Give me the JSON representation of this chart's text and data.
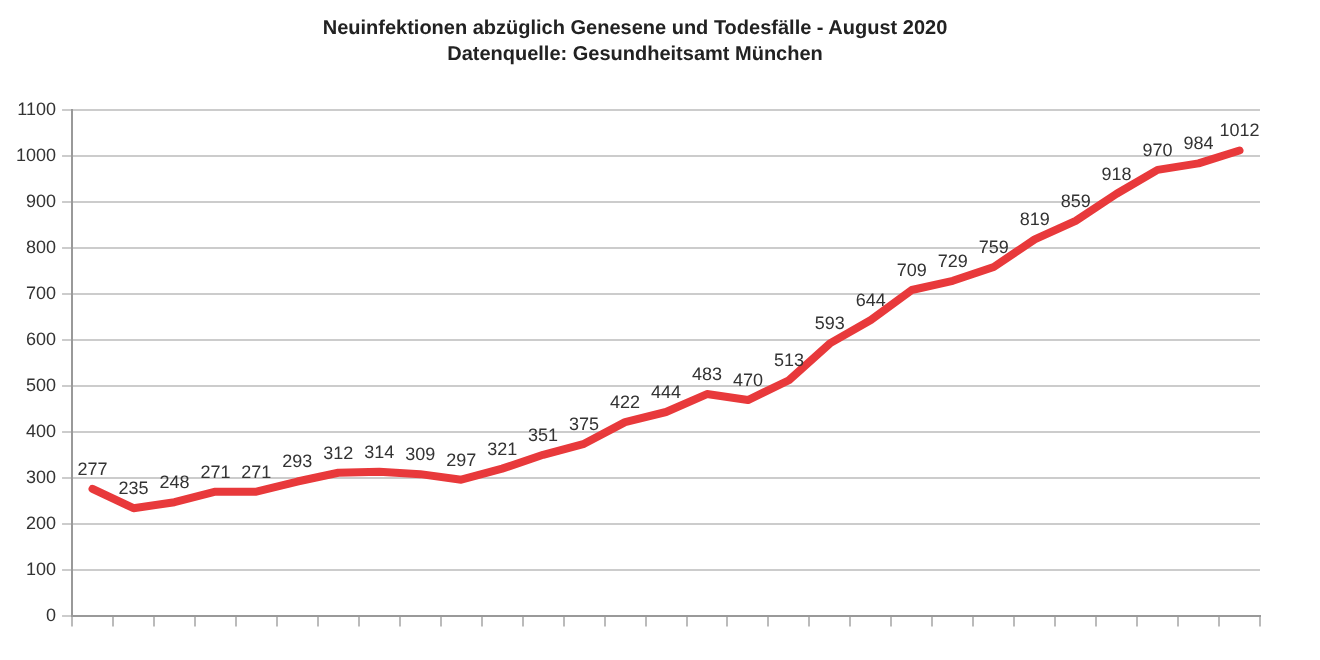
{
  "chart_data": {
    "type": "line",
    "title": "Neuinfektionen abzüglich Genesene und Todesfälle - August 2020",
    "subtitle": "Datenquelle: Gesundheitsamt München",
    "categories": [
      null,
      null,
      null,
      null,
      null,
      null,
      null,
      null,
      null,
      null,
      null,
      null,
      null,
      null,
      null,
      null,
      null,
      null,
      null,
      null,
      null,
      null,
      null,
      null,
      null,
      null,
      null,
      null,
      null
    ],
    "series": [
      {
        "color": "#e8393b",
        "values": [
          277,
          235,
          248,
          271,
          271,
          293,
          312,
          314,
          309,
          297,
          321,
          351,
          375,
          422,
          444,
          483,
          470,
          513,
          593,
          644,
          709,
          729,
          759,
          819,
          859,
          918,
          970,
          984,
          1012
        ]
      }
    ],
    "ylim": [
      0,
      1100
    ],
    "yticks": [
      0,
      100,
      200,
      300,
      400,
      500,
      600,
      700,
      800,
      900,
      1000,
      1100
    ],
    "grid": "y",
    "legend": false,
    "marker": "none",
    "line_style": "solid",
    "data_labels": true
  }
}
